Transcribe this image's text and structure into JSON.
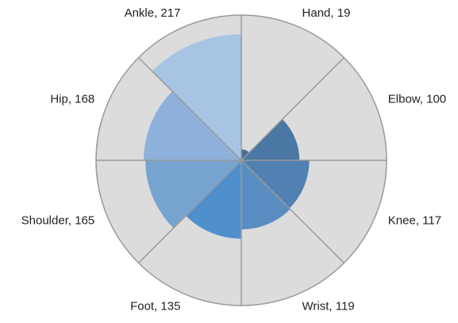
{
  "chart_data": {
    "type": "polar-area",
    "categories": [
      "Hand",
      "Elbow",
      "Knee",
      "Wrist",
      "Foot",
      "Shoulder",
      "Hip",
      "Ankle"
    ],
    "values": [
      19,
      100,
      117,
      119,
      135,
      165,
      168,
      217
    ],
    "value_labels": [
      "Hand, 19",
      "Elbow, 100",
      "Knee, 117",
      "Wrist, 119",
      "Foot, 135",
      "Shoulder, 165",
      "Hip, 168",
      "Ankle, 217"
    ],
    "colors": [
      "#4a6f96",
      "#4a77a3",
      "#5181b2",
      "#5a8dc2",
      "#4f90cc",
      "#77a3d0",
      "#8db1da",
      "#a8c4e4"
    ],
    "rlim": [
      0,
      250
    ]
  }
}
